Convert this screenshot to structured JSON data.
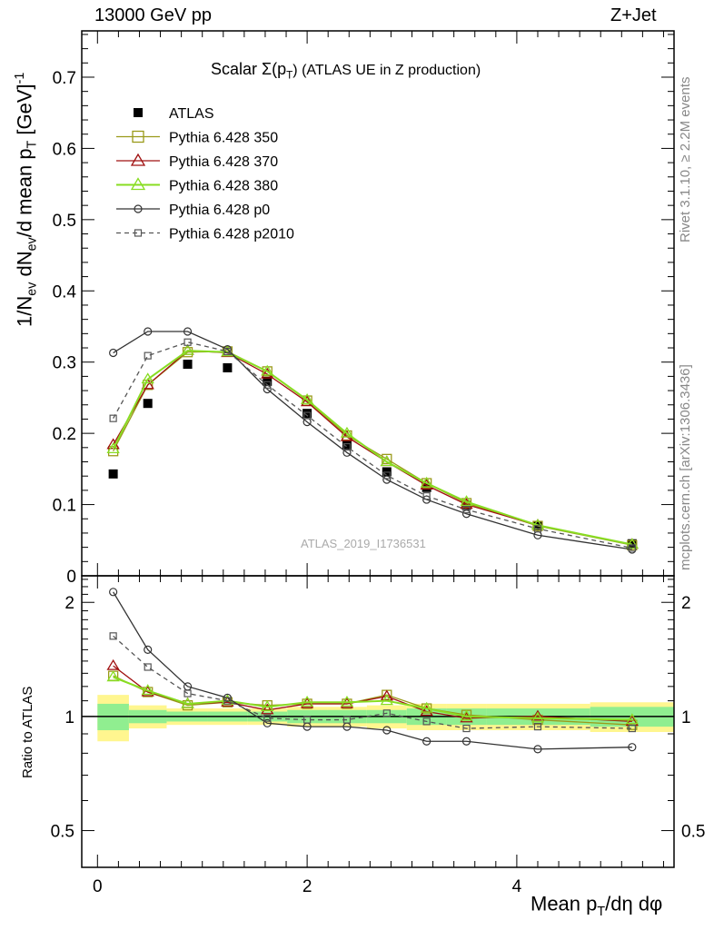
{
  "header": {
    "left": "13000 GeV pp",
    "right": "Z+Jet"
  },
  "side_text": {
    "rivet": "Rivet 3.1.10, ≥ 2.2M events",
    "mcplots": "mcplots.cern.ch [arXiv:1306.3436]"
  },
  "watermark": "ATLAS_2019_I1736531",
  "chart_data": [
    {
      "type": "scatter",
      "title": "Scalar Σ(p_T) (ATLAS UE in Z production)",
      "title_main": "Scalar Σ(p",
      "title_sub": "T",
      "title_tail": ")  (ATLAS UE in Z production)",
      "ylabel": "1/N_ev dN_ev/d mean p_T [GeV]^-1",
      "ylim": [
        0,
        0.765
      ],
      "xlim": [
        -0.15,
        5.5
      ],
      "yticks": [
        0,
        0.1,
        0.2,
        0.3,
        0.4,
        0.5,
        0.6,
        0.7
      ],
      "ytick_labels": [
        "0",
        "0.1",
        "0.2",
        "0.3",
        "0.4",
        "0.5",
        "0.6",
        "0.7"
      ],
      "legend_placement": "top-left",
      "x": [
        0.15,
        0.48,
        0.86,
        1.24,
        1.62,
        2.0,
        2.38,
        2.76,
        3.14,
        3.52,
        4.2,
        5.1
      ],
      "series": [
        {
          "name": "ATLAS",
          "color": "#000000",
          "marker": "filled-square",
          "line": "none",
          "values": [
            0.143,
            0.242,
            0.297,
            0.292,
            0.273,
            0.228,
            0.184,
            0.146,
            0.124,
            0.099,
            0.07,
            0.045
          ]
        },
        {
          "name": "Pythia 6.428 350",
          "color": "#9a9a1a",
          "marker": "open-square",
          "line": "solid",
          "values": [
            0.175,
            0.268,
            0.314,
            0.315,
            0.287,
            0.246,
            0.197,
            0.164,
            0.13,
            0.102,
            0.07,
            0.043
          ]
        },
        {
          "name": "Pythia 6.428 370",
          "color": "#a01010",
          "marker": "open-triangle",
          "line": "solid",
          "values": [
            0.184,
            0.268,
            0.316,
            0.313,
            0.283,
            0.244,
            0.195,
            0.16,
            0.127,
            0.1,
            0.071,
            0.044
          ]
        },
        {
          "name": "Pythia 6.428 380",
          "color": "#88dd22",
          "marker": "open-triangle",
          "line": "solid",
          "values": [
            0.178,
            0.276,
            0.316,
            0.314,
            0.287,
            0.247,
            0.2,
            0.16,
            0.13,
            0.104,
            0.071,
            0.044
          ]
        },
        {
          "name": "Pythia 6.428 p0",
          "color": "#333333",
          "marker": "open-circle",
          "line": "solid",
          "values": [
            0.313,
            0.343,
            0.343,
            0.318,
            0.262,
            0.216,
            0.173,
            0.135,
            0.107,
            0.087,
            0.057,
            0.037
          ]
        },
        {
          "name": "Pythia 6.428 p2010",
          "color": "#555555",
          "marker": "open-square-small",
          "line": "dashed",
          "values": [
            0.221,
            0.309,
            0.328,
            0.315,
            0.268,
            0.225,
            0.181,
            0.141,
            0.112,
            0.093,
            0.066,
            0.039
          ]
        }
      ]
    },
    {
      "type": "line",
      "ylabel": "Ratio to ATLAS",
      "ylim": [
        0.4,
        2.35
      ],
      "yticks": [
        0.5,
        1,
        2
      ],
      "ytick_labels": [
        "0.5",
        "1",
        "2"
      ],
      "xlabel": "Mean p_T/dη dφ",
      "xlabel_main": "Mean p",
      "xlabel_sub": "T",
      "xlabel_tail": "/dη dφ",
      "xticks": [
        0,
        2,
        4
      ],
      "xtick_labels": [
        "0",
        "2",
        "4"
      ],
      "xlim": [
        -0.15,
        5.5
      ],
      "bin_edges": [
        0.0,
        0.3,
        0.66,
        1.05,
        1.43,
        1.81,
        2.19,
        2.57,
        2.95,
        3.33,
        3.71,
        4.7,
        5.5
      ],
      "band_stat": [
        0.08,
        0.04,
        0.03,
        0.03,
        0.03,
        0.04,
        0.04,
        0.04,
        0.05,
        0.05,
        0.05,
        0.06
      ],
      "band_total": [
        0.14,
        0.07,
        0.05,
        0.05,
        0.05,
        0.06,
        0.06,
        0.07,
        0.08,
        0.08,
        0.08,
        0.09
      ],
      "x": [
        0.15,
        0.48,
        0.86,
        1.24,
        1.62,
        2.0,
        2.38,
        2.76,
        3.14,
        3.52,
        4.2,
        5.1
      ],
      "series": [
        {
          "name": "Pythia 6.428 350",
          "color": "#9a9a1a",
          "marker": "open-square",
          "line": "solid",
          "values": [
            1.28,
            1.16,
            1.07,
            1.09,
            1.07,
            1.08,
            1.08,
            1.14,
            1.05,
            1.01,
            0.98,
            0.95
          ]
        },
        {
          "name": "Pythia 6.428 370",
          "color": "#a01010",
          "marker": "open-triangle",
          "line": "solid",
          "values": [
            1.36,
            1.16,
            1.08,
            1.09,
            1.04,
            1.08,
            1.08,
            1.13,
            1.03,
            0.99,
            1.0,
            0.97
          ]
        },
        {
          "name": "Pythia 6.428 380",
          "color": "#88dd22",
          "marker": "open-triangle",
          "line": "solid",
          "values": [
            1.27,
            1.17,
            1.08,
            1.1,
            1.06,
            1.09,
            1.09,
            1.1,
            1.05,
            1.0,
            0.99,
            0.98
          ]
        },
        {
          "name": "Pythia 6.428 p0",
          "color": "#333333",
          "marker": "open-circle",
          "line": "solid",
          "values": [
            2.13,
            1.5,
            1.2,
            1.12,
            0.96,
            0.94,
            0.94,
            0.92,
            0.86,
            0.86,
            0.82,
            0.83
          ]
        },
        {
          "name": "Pythia 6.428 p2010",
          "color": "#555555",
          "marker": "open-square-small",
          "line": "dashed",
          "values": [
            1.63,
            1.35,
            1.15,
            1.1,
            0.99,
            0.98,
            0.98,
            1.02,
            0.97,
            0.93,
            0.94,
            0.93
          ]
        }
      ]
    }
  ]
}
